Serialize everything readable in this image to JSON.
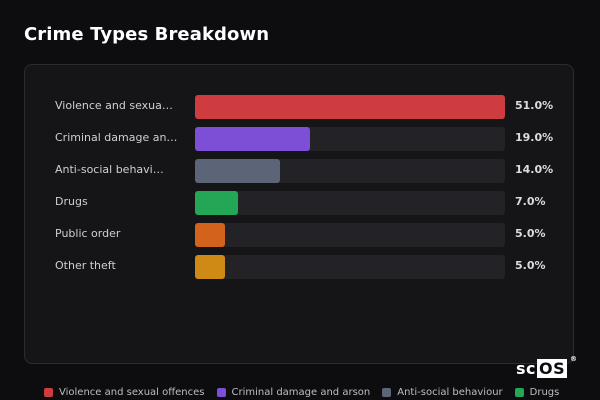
{
  "title": "Crime Types Breakdown",
  "brand": {
    "prefix": "sc",
    "boxed": "OS",
    "mark": "®"
  },
  "chart_data": {
    "type": "bar",
    "orientation": "horizontal",
    "title": "Crime Types Breakdown",
    "unit": "%",
    "max": 51.0,
    "categories": [
      "Violence and sexua…",
      "Criminal damage an…",
      "Anti-social behavi…",
      "Drugs",
      "Public order",
      "Other theft"
    ],
    "values": [
      51.0,
      19.0,
      14.0,
      7.0,
      5.0,
      5.0
    ],
    "value_labels": [
      "51.0%",
      "19.0%",
      "14.0%",
      "7.0%",
      "5.0%",
      "5.0%"
    ],
    "colors": [
      "#cf3c40",
      "#7c4fd6",
      "#5c6577",
      "#23a757",
      "#d2621c",
      "#cf8a16"
    ],
    "legend_placement": "bottom",
    "legend": [
      {
        "label": "Violence and sexual offences",
        "color": "#cf3c40"
      },
      {
        "label": "Criminal damage and arson",
        "color": "#7c4fd6"
      },
      {
        "label": "Anti-social behaviour",
        "color": "#5c6577"
      },
      {
        "label": "Drugs",
        "color": "#23a757"
      }
    ]
  }
}
